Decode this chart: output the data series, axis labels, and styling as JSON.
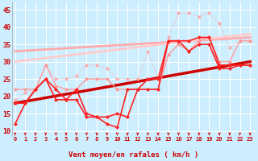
{
  "xlabel": "Vent moyen/en rafales ( km/h )",
  "background_color": "#cceeff",
  "grid_color": "#ffffff",
  "x_ticks": [
    0,
    1,
    2,
    3,
    4,
    5,
    6,
    7,
    8,
    9,
    10,
    11,
    12,
    13,
    14,
    15,
    16,
    17,
    18,
    19,
    20,
    21,
    22,
    23
  ],
  "y_ticks": [
    10,
    15,
    20,
    25,
    30,
    35,
    40,
    45
  ],
  "ylim": [
    8.5,
    47
  ],
  "xlim": [
    -0.3,
    23.5
  ],
  "series": [
    {
      "x": [
        0,
        23
      ],
      "y": [
        18,
        30
      ],
      "color": "#cc0000",
      "lw": 2.5,
      "marker": null,
      "ms": 0,
      "ls": "-",
      "zorder": 3
    },
    {
      "x": [
        0,
        23
      ],
      "y": [
        33,
        37
      ],
      "color": "#ffaaaa",
      "lw": 2.0,
      "marker": null,
      "ms": 0,
      "ls": "-",
      "zorder": 2
    },
    {
      "x": [
        0,
        23
      ],
      "y": [
        30,
        38
      ],
      "color": "#ffcccc",
      "lw": 2.0,
      "marker": null,
      "ms": 0,
      "ls": "-",
      "zorder": 2
    },
    {
      "x": [
        0,
        1,
        2,
        3,
        4,
        5,
        6,
        7,
        8,
        9,
        10,
        11,
        12,
        13,
        14,
        15,
        16,
        17,
        18,
        19,
        20,
        21,
        22,
        23
      ],
      "y": [
        19,
        21,
        22,
        29,
        25,
        25,
        26,
        29,
        29,
        28,
        25,
        25,
        25,
        33,
        25,
        37,
        44,
        44,
        43,
        44,
        41,
        34,
        36,
        36
      ],
      "color": "#ffaaaa",
      "lw": 0.8,
      "marker": "D",
      "ms": 2.0,
      "ls": ":",
      "zorder": 4
    },
    {
      "x": [
        0,
        1,
        2,
        3,
        4,
        5,
        6,
        7,
        8,
        9,
        10,
        11,
        12,
        13,
        14,
        15,
        16,
        17,
        18,
        19,
        20,
        21,
        22,
        23
      ],
      "y": [
        22,
        22,
        22,
        29,
        23,
        22,
        22,
        25,
        25,
        25,
        22,
        22,
        22,
        22,
        22,
        32,
        35,
        33,
        36,
        37,
        30,
        30,
        36,
        36
      ],
      "color": "#ff9999",
      "lw": 1.0,
      "marker": "D",
      "ms": 2.0,
      "ls": "-",
      "zorder": 4
    },
    {
      "x": [
        0,
        1,
        2,
        3,
        4,
        5,
        6,
        7,
        8,
        9,
        10,
        11,
        12,
        13,
        14,
        15,
        16,
        17,
        18,
        19,
        20,
        21,
        22,
        23
      ],
      "y": [
        18,
        18,
        22,
        25,
        22,
        19,
        22,
        15,
        14,
        12,
        11,
        22,
        22,
        25,
        25,
        36,
        36,
        36,
        37,
        37,
        29,
        29,
        29,
        29
      ],
      "color": "#ff2222",
      "lw": 1.2,
      "marker": "D",
      "ms": 2.0,
      "ls": "-",
      "zorder": 5
    },
    {
      "x": [
        0,
        1,
        2,
        3,
        4,
        5,
        6,
        7,
        8,
        9,
        10,
        11,
        12,
        13,
        14,
        15,
        16,
        17,
        18,
        19,
        20,
        21,
        22,
        23
      ],
      "y": [
        12,
        18,
        22,
        25,
        19,
        19,
        19,
        14,
        14,
        14,
        15,
        14,
        22,
        22,
        22,
        36,
        36,
        33,
        35,
        35,
        28,
        28,
        29,
        29
      ],
      "color": "#ff2222",
      "lw": 1.2,
      "marker": "D",
      "ms": 2.0,
      "ls": "-",
      "zorder": 5
    }
  ]
}
